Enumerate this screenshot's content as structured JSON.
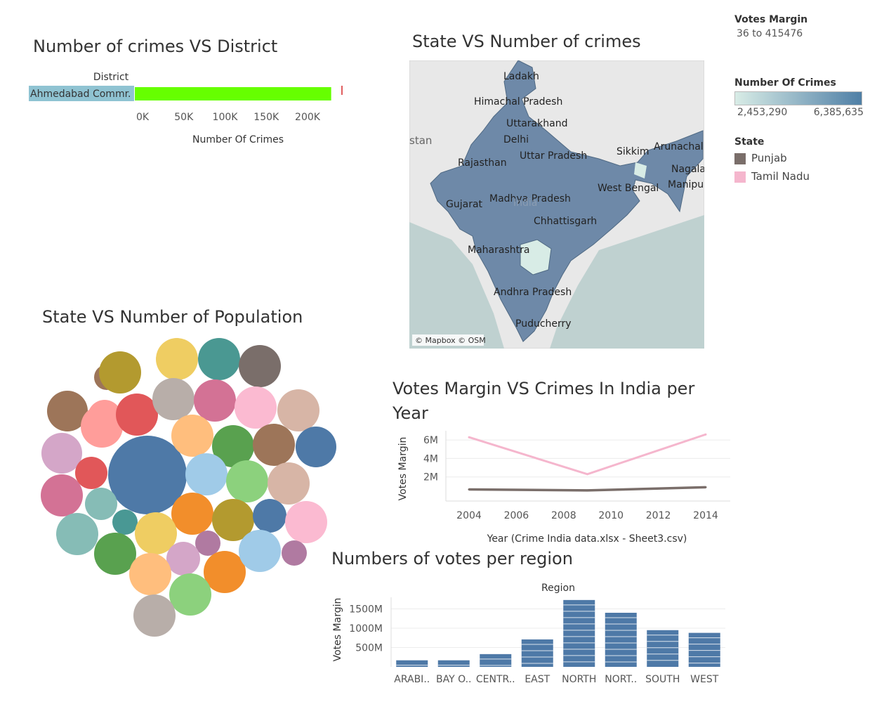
{
  "titles": {
    "crimes_district": "Number of crimes VS  District",
    "state_crimes": "State VS Number of crimes",
    "state_population": "State  VS Number of Population",
    "votes_crimes": "Votes Margin VS Crimes In India per Year",
    "votes_region": "Numbers of votes per region"
  },
  "legend": {
    "votes_margin_title": "Votes Margin",
    "votes_margin_range": "36 to 415476",
    "crimes_title": "Number Of Crimes",
    "crimes_min": "2,453,290",
    "crimes_max": "6,385,635",
    "crimes_color_low": "#d8ece6",
    "crimes_color_high": "#4f7fa6",
    "state_title": "State",
    "states": [
      {
        "name": "Punjab",
        "color": "#7a6e6a"
      },
      {
        "name": "Tamil Nadu",
        "color": "#f5b6cd"
      }
    ]
  },
  "map": {
    "attribution": "© Mapbox © OSM",
    "labels": [
      "Ladakh",
      "Himachal Pradesh",
      "Uttarakhand",
      "Delhi",
      "Uttar Pradesh",
      "Sikkim",
      "Arunachal",
      "Nagala",
      "Manipu",
      "Rajasthan",
      "West Bengal",
      "Gujarat",
      "Madhya Pradesh",
      "India",
      "Chhattisgarh",
      "Maharashtra",
      "Andhra Pradesh",
      "Puducherry",
      "stan"
    ]
  },
  "chart_data": [
    {
      "id": "crimes_district",
      "type": "bar",
      "orientation": "horizontal",
      "categories_header": "District",
      "categories": [
        "Ahmedabad Commr."
      ],
      "values": [
        238000
      ],
      "xlabel": "Number Of Crimes",
      "ticks": [
        "0K",
        "50K",
        "100K",
        "150K",
        "200K"
      ],
      "xlim": [
        0,
        240000
      ],
      "color": "#66ff00"
    },
    {
      "id": "state_population",
      "type": "scatter",
      "subtype": "packed-bubbles",
      "colors": [
        "#4e79a7",
        "#ff9d9a",
        "#b39a2f",
        "#efcd62",
        "#4a9892",
        "#7a6e6a",
        "#9d7559",
        "#e15759",
        "#b8aea9",
        "#d37295",
        "#fbbad1",
        "#d7b5a6",
        "#d4a6c8",
        "#ffbe7d",
        "#59a14f",
        "#a0cbe8",
        "#8cd17d",
        "#86bcb6",
        "#f28e2b",
        "#b07aa1",
        "#499894"
      ]
    },
    {
      "id": "votes_crimes",
      "type": "line",
      "x": [
        2004,
        2009,
        2014
      ],
      "series": [
        {
          "name": "Tamil Nadu",
          "values": [
            6300000,
            2300000,
            6600000
          ],
          "color": "#f5b6cd"
        },
        {
          "name": "Punjab",
          "values": [
            650000,
            540000,
            880000
          ],
          "color": "#7a6e6a"
        }
      ],
      "xlabel": "Year (Crime India data.xlsx - Sheet3.csv)",
      "ylabel": "Votes Margin",
      "xticks": [
        "2004",
        "2006",
        "2008",
        "2010",
        "2012",
        "2014"
      ],
      "yticks": [
        "2M",
        "4M",
        "6M"
      ],
      "xlim": [
        2004,
        2014
      ],
      "ylim": [
        0,
        7000000
      ]
    },
    {
      "id": "votes_region",
      "type": "bar",
      "header": "Region",
      "categories": [
        "ARABI..",
        "BAY O..",
        "CENTR..",
        "EAST",
        "NORTH",
        "NORT..",
        "SOUTH",
        "WEST"
      ],
      "values": [
        170000000,
        170000000,
        330000000,
        710000000,
        1730000000,
        1400000000,
        950000000,
        880000000
      ],
      "ylabel": "Votes Margin",
      "yticks": [
        "500M",
        "1000M",
        "1500M"
      ],
      "ylim": [
        0,
        1800000000
      ],
      "color": "#4e79a7"
    }
  ]
}
